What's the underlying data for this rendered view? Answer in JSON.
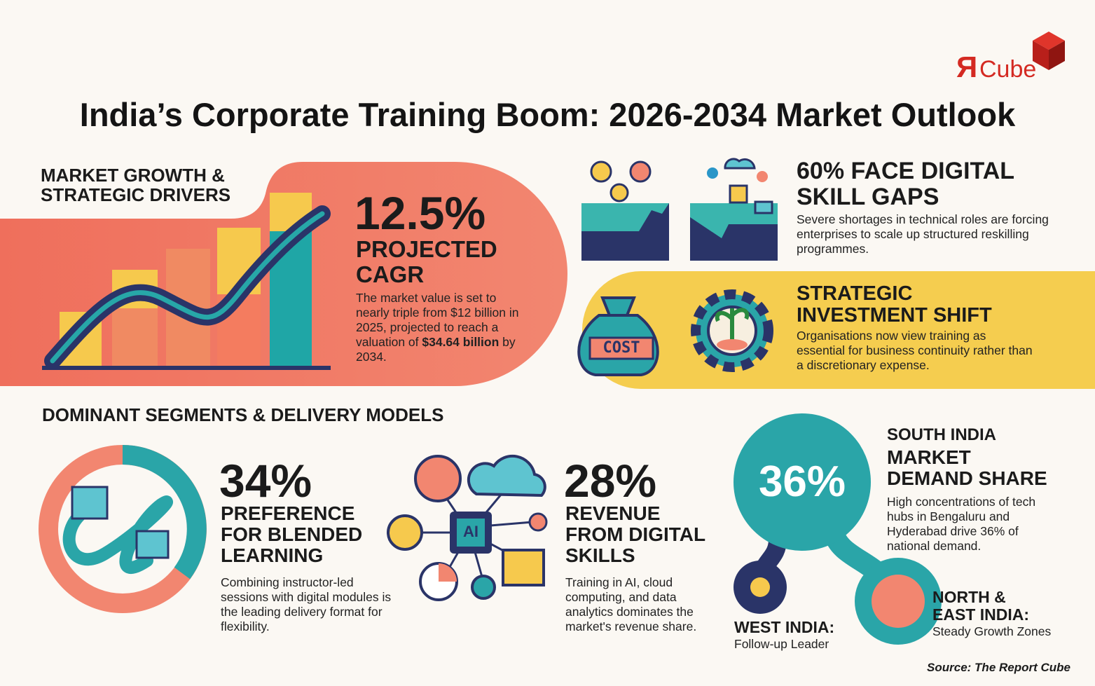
{
  "logo": {
    "mark": "Я",
    "text": "Cube"
  },
  "title": "India’s Corporate Training Boom: 2026-2034 Market Outlook",
  "growth": {
    "heading": [
      "MARKET GROWTH &",
      "STRATEGIC DRIVERS"
    ],
    "stat": "12.5%",
    "label": [
      "PROJECTED",
      "CAGR"
    ],
    "description": [
      "The market value is set to nearly triple from $12 billion in 2025, projected to reach a valuation of ",
      "$34.64 billion",
      " by 2034."
    ]
  },
  "skill_gaps": {
    "heading": [
      "60% FACE DIGITAL",
      "SKILL GAPS"
    ],
    "description": "Severe shortages in technical roles are forcing enterprises to scale up structured reskilling programmes."
  },
  "investment": {
    "icon_text": "COST",
    "heading": [
      "STRATEGIC",
      "INVESTMENT SHIFT"
    ],
    "description": "Organisations now view training as essential for business continuity rather than a discretionary expense."
  },
  "segments": {
    "heading": "DOMINANT SEGMENTS & DELIVERY MODELS",
    "blended": {
      "stat": "34%",
      "label": [
        "PREFERENCE",
        "FOR BLENDED",
        "LEARNING"
      ],
      "description": "Combining instructor-led sessions with digital modules is the leading delivery format for flexibility."
    },
    "digital": {
      "icon_text": "AI",
      "stat": "28%",
      "label": [
        "REVENUE",
        "FROM DIGITAL",
        "SKILLS"
      ],
      "description": "Training in AI, cloud computing, and data analytics dominates the market's revenue share."
    }
  },
  "regions": {
    "south": {
      "stat": "36%",
      "label": [
        "SOUTH INDIA",
        "MARKET",
        "DEMAND SHARE"
      ],
      "description": "High concentrations of tech hubs in Bengaluru and Hyderabad drive 36% of national demand."
    },
    "west": {
      "label": "WEST INDIA:",
      "description": "Follow-up Leader"
    },
    "north": {
      "label": [
        "NORTH &",
        "EAST INDIA:"
      ],
      "description": "Steady Growth Zones"
    }
  },
  "source": "Source: The Report Cube"
}
